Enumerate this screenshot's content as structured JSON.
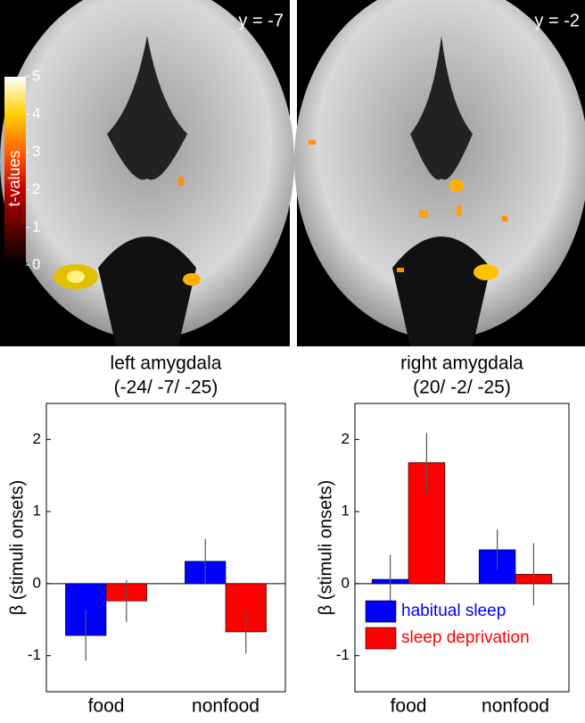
{
  "brain_panels": [
    {
      "label": "y = -7"
    },
    {
      "label": "y = -2"
    }
  ],
  "colorbar": {
    "label": "t-values",
    "ticks": [
      0,
      1,
      2,
      3,
      4,
      5
    ],
    "lim": [
      0,
      5
    ]
  },
  "chart_data": [
    {
      "type": "bar",
      "title": "left amygdala",
      "subtitle": "(-24/ -7/ -25)",
      "ylabel": "β (stimuli onsets)",
      "categories": [
        "food",
        "nonfood"
      ],
      "series": [
        {
          "color": "#0000ff",
          "values": [
            -0.72,
            0.31
          ],
          "errors": [
            0.35,
            0.31
          ]
        },
        {
          "color": "#ff0000",
          "values": [
            -0.24,
            -0.67
          ],
          "errors": [
            0.29,
            0.3
          ]
        }
      ],
      "ylim": [
        -1.5,
        2.5
      ],
      "yticks": [
        -1,
        0,
        1,
        2
      ]
    },
    {
      "type": "bar",
      "title": "right amygdala",
      "subtitle": "(20/ -2/ -25)",
      "ylabel": "β (stimuli onsets)",
      "categories": [
        "food",
        "nonfood"
      ],
      "series": [
        {
          "name": "habitual sleep",
          "color": "#0000ff",
          "values": [
            0.06,
            0.47
          ],
          "errors": [
            0.34,
            0.28
          ]
        },
        {
          "name": "sleep deprivation",
          "color": "#ff0000",
          "values": [
            1.68,
            0.13
          ],
          "errors": [
            0.41,
            0.43
          ]
        }
      ],
      "ylim": [
        -1.5,
        2.5
      ],
      "yticks": [
        -1,
        0,
        1,
        2
      ],
      "legend": "lower right"
    }
  ]
}
